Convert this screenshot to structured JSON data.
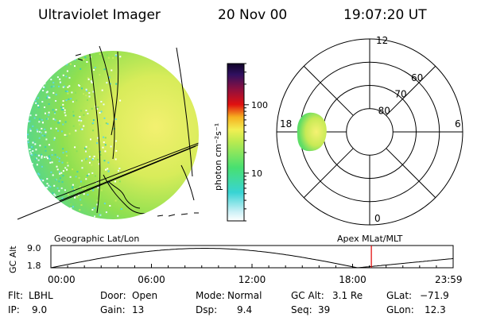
{
  "header": {
    "instrument": "Ultraviolet Imager",
    "date": "20 Nov 00",
    "time": "19:07:20 UT"
  },
  "colorbar": {
    "unit_label": "photon cm⁻²s⁻¹",
    "ticks": [
      {
        "label": "100",
        "value": 100
      },
      {
        "label": "10",
        "value": 10
      }
    ]
  },
  "polar": {
    "mlt_labels": [
      {
        "label": "12",
        "mlt": 12
      },
      {
        "label": "18",
        "mlt": 18
      },
      {
        "label": "6",
        "mlt": 6
      },
      {
        "label": "0",
        "mlt": 0
      }
    ],
    "lat_labels": [
      {
        "label": "60",
        "mlat": 60
      },
      {
        "label": "70",
        "mlat": 70
      },
      {
        "label": "80",
        "mlat": 80
      }
    ]
  },
  "timeline": {
    "left_title": "Geographic Lat/Lon",
    "right_title": "Apex MLat/MLT",
    "ylabel": "GC Alt",
    "ytick_top": "9.0",
    "ytick_bottom": "1.8",
    "xticks": [
      {
        "label": "00:00",
        "hour": 0
      },
      {
        "label": "06:00",
        "hour": 6
      },
      {
        "label": "12:00",
        "hour": 12
      },
      {
        "label": "18:00",
        "hour": 18
      },
      {
        "label": "23:59",
        "hour": 23.98
      }
    ],
    "current_hour": 19.12,
    "marker_color": "#e00000"
  },
  "info": {
    "filter_label": "Flt:",
    "filter_value": "LBHL",
    "door_label": "Door:",
    "door_value": "Open",
    "mode_label": "Mode:",
    "mode_value": "Normal",
    "gcalt_label": "GC Alt:",
    "gcalt_value": "3.1 Re",
    "glat_label": "GLat:",
    "glat_value": "−71.9",
    "ip_label": "IP:",
    "ip_value": "9.0",
    "gain_label": "Gain:",
    "gain_value": "13",
    "dsp_label": "Dsp:",
    "dsp_value": "9.4",
    "seq_label": "Seq:",
    "seq_value": "39",
    "glon_label": "GLon:",
    "glon_value": "12.3"
  }
}
